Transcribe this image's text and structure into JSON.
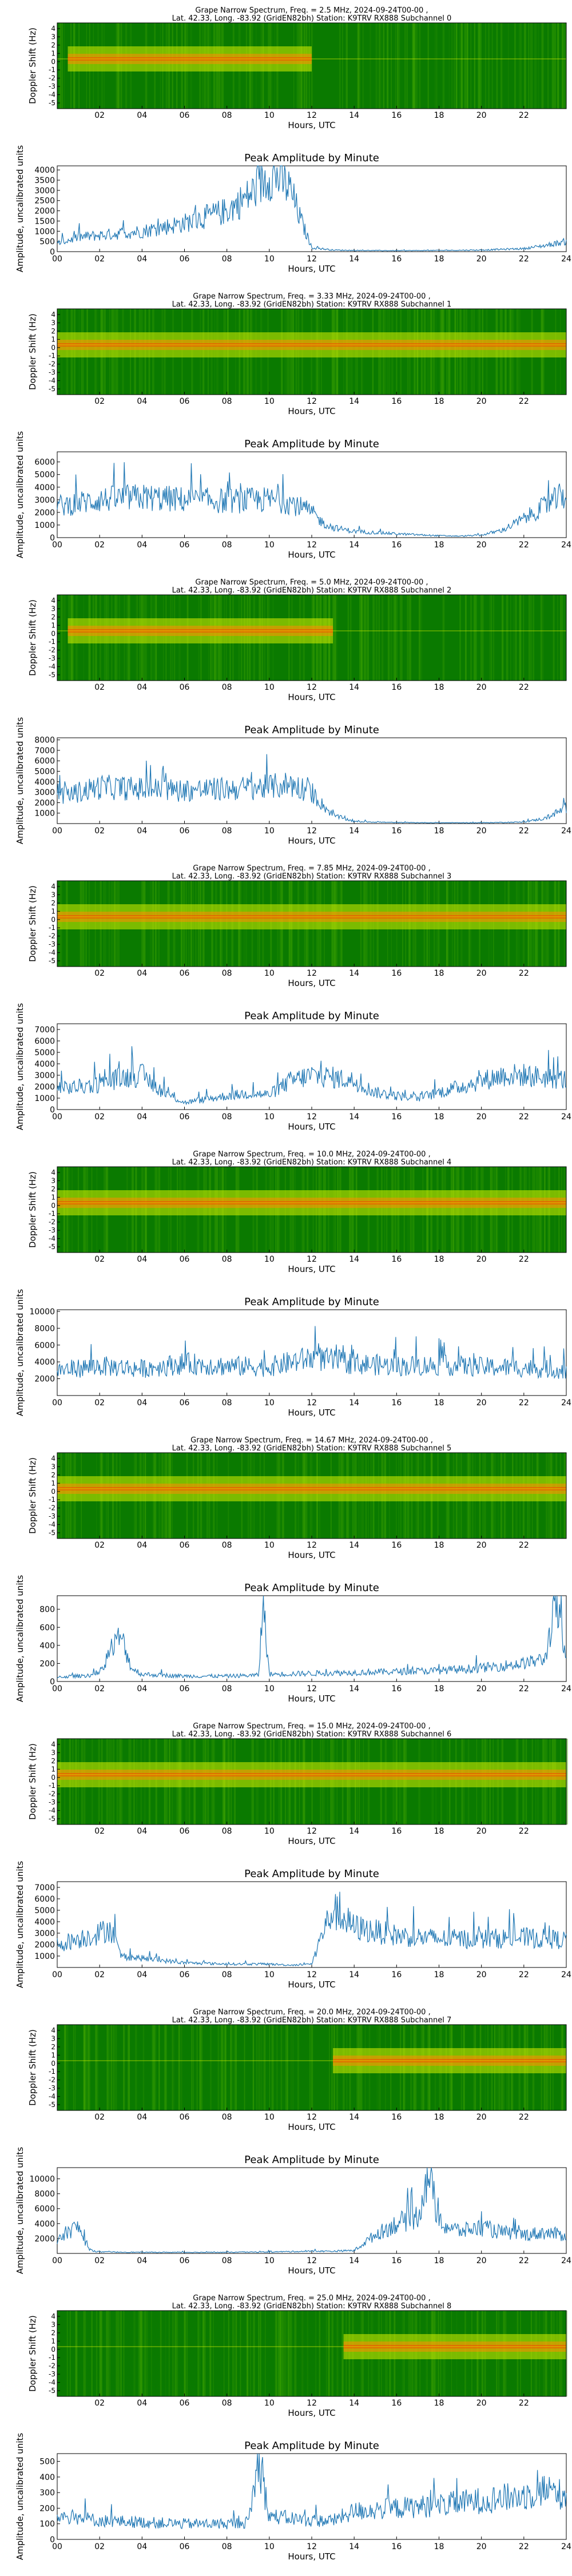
{
  "colors": {
    "line": "#1f77b4",
    "spec_dark": "#0a7a00",
    "spec_mid": "#3aa000",
    "spec_light": "#d8f000",
    "spec_hot": "#ff8a00",
    "spec_core": "#ff3300"
  },
  "spectrogram_axis": {
    "ylabel": "Doppler Shift (Hz)",
    "xlabel": "Hours, UTC",
    "yticks": [
      "4",
      "3",
      "2",
      "1",
      "0",
      "-1",
      "-2",
      "-3",
      "-4",
      "-5"
    ],
    "xticks": [
      "02",
      "04",
      "06",
      "08",
      "10",
      "12",
      "14",
      "16",
      "18",
      "20",
      "22"
    ]
  },
  "amplitude_axis": {
    "title": "Peak Amplitude by Minute",
    "ylabel": "Amplitude, uncalibrated units",
    "xlabel": "Hours, UTC",
    "xticks": [
      "00",
      "02",
      "04",
      "06",
      "08",
      "10",
      "12",
      "14",
      "16",
      "18",
      "20",
      "22",
      "24"
    ]
  },
  "chart_data": [
    {
      "type": "heatmap",
      "title_line1": "Grape Narrow Spectrum, Freq. = 2.5 MHz, 2024-09-24T00-00 ,",
      "title_line2": "Lat.  42.33, Long. -83.92 (GridEN82bh) Station: K9TRV RX888 Subchannel 0",
      "xlabel": "Hours, UTC",
      "ylabel": "Doppler Shift (Hz)",
      "xlim": [
        0,
        24
      ],
      "ylim": [
        -5,
        5
      ],
      "signal_hours": [
        0.5,
        12
      ]
    },
    {
      "type": "line",
      "title": "Peak Amplitude by Minute",
      "xlabel": "Hours, UTC",
      "ylabel": "Amplitude, uncalibrated units",
      "xlim": [
        0,
        24
      ],
      "ylim": [
        0,
        4200
      ],
      "yticks": [
        0,
        500,
        1000,
        1500,
        2000,
        2500,
        3000,
        3500,
        4000
      ],
      "x": [
        0,
        1,
        2,
        3,
        4,
        5,
        6,
        7,
        8,
        9,
        9.5,
        10,
        10.5,
        11,
        11.5,
        12,
        13,
        14,
        16,
        18,
        20,
        22,
        23,
        24
      ],
      "y": [
        400,
        700,
        800,
        900,
        1000,
        1200,
        1400,
        1700,
        2000,
        2700,
        3200,
        3800,
        3600,
        3000,
        1500,
        200,
        80,
        60,
        50,
        60,
        80,
        150,
        300,
        500
      ]
    },
    {
      "type": "heatmap",
      "title_line1": "Grape Narrow Spectrum, Freq. = 3.33 MHz, 2024-09-24T00-00 ,",
      "title_line2": "Lat.  42.33, Long. -83.92 (GridEN82bh) Station: K9TRV RX888 Subchannel 1",
      "xlabel": "Hours, UTC",
      "ylabel": "Doppler Shift (Hz)",
      "xlim": [
        0,
        24
      ],
      "ylim": [
        -5,
        5
      ],
      "signal_hours": [
        0,
        24
      ]
    },
    {
      "type": "line",
      "title": "Peak Amplitude by Minute",
      "xlabel": "Hours, UTC",
      "ylabel": "Amplitude, uncalibrated units",
      "xlim": [
        0,
        24
      ],
      "ylim": [
        0,
        6800
      ],
      "yticks": [
        0,
        1000,
        2000,
        3000,
        4000,
        5000,
        6000
      ],
      "x": [
        0,
        2,
        4,
        6,
        8,
        10,
        11,
        12,
        12.5,
        13,
        14,
        16,
        18,
        19,
        20,
        21,
        22,
        23,
        24
      ],
      "y": [
        2500,
        3000,
        3200,
        3000,
        2900,
        3000,
        2800,
        2000,
        1200,
        800,
        500,
        300,
        150,
        120,
        200,
        600,
        1500,
        2500,
        3500
      ]
    },
    {
      "type": "heatmap",
      "title_line1": "Grape Narrow Spectrum, Freq. = 5.0 MHz, 2024-09-24T00-00 ,",
      "title_line2": "Lat.  42.33, Long. -83.92 (GridEN82bh) Station: K9TRV RX888 Subchannel 2",
      "xlabel": "Hours, UTC",
      "ylabel": "Doppler Shift (Hz)",
      "xlim": [
        0,
        24
      ],
      "ylim": [
        -5,
        5
      ],
      "signal_hours": [
        0.5,
        13
      ]
    },
    {
      "type": "line",
      "title": "Peak Amplitude by Minute",
      "xlabel": "Hours, UTC",
      "ylabel": "Amplitude, uncalibrated units",
      "xlim": [
        0,
        24
      ],
      "ylim": [
        0,
        8200
      ],
      "yticks": [
        1000,
        2000,
        3000,
        4000,
        5000,
        6000,
        7000,
        8000
      ],
      "x": [
        0,
        2,
        4,
        6,
        8,
        10,
        11,
        12,
        12.5,
        13,
        14,
        16,
        18,
        20,
        22,
        23,
        24
      ],
      "y": [
        2500,
        3500,
        3300,
        3200,
        3300,
        3500,
        3800,
        3000,
        1800,
        800,
        200,
        100,
        80,
        80,
        150,
        500,
        1500
      ]
    },
    {
      "type": "heatmap",
      "title_line1": "Grape Narrow Spectrum, Freq. = 7.85 MHz, 2024-09-24T00-00 ,",
      "title_line2": "Lat.  42.33, Long. -83.92 (GridEN82bh) Station: K9TRV RX888 Subchannel 3",
      "xlabel": "Hours, UTC",
      "ylabel": "Doppler Shift (Hz)",
      "xlim": [
        0,
        24
      ],
      "ylim": [
        -5,
        5
      ],
      "signal_hours": [
        0,
        24
      ]
    },
    {
      "type": "line",
      "title": "Peak Amplitude by Minute",
      "xlabel": "Hours, UTC",
      "ylabel": "Amplitude, uncalibrated units",
      "xlim": [
        0,
        24
      ],
      "ylim": [
        0,
        7500
      ],
      "yticks": [
        0,
        1000,
        2000,
        3000,
        4000,
        5000,
        6000,
        7000
      ],
      "x": [
        0,
        1,
        2,
        3,
        4,
        5,
        6,
        7,
        8,
        9,
        10,
        11,
        12,
        13,
        14,
        15,
        16,
        17,
        18,
        19,
        20,
        21,
        22,
        23,
        24
      ],
      "y": [
        1800,
        2000,
        2200,
        2800,
        3000,
        1500,
        600,
        900,
        1200,
        1400,
        1300,
        2500,
        3000,
        2800,
        2500,
        1500,
        1200,
        1000,
        1500,
        2000,
        2500,
        3000,
        3000,
        2800,
        2600
      ]
    },
    {
      "type": "heatmap",
      "title_line1": "Grape Narrow Spectrum, Freq. = 10.0 MHz, 2024-09-24T00-00 ,",
      "title_line2": "Lat.  42.33, Long. -83.92 (GridEN82bh) Station: K9TRV RX888 Subchannel 4",
      "xlabel": "Hours, UTC",
      "ylabel": "Doppler Shift (Hz)",
      "xlim": [
        0,
        24
      ],
      "ylim": [
        -5,
        5
      ],
      "signal_hours": [
        0,
        24
      ]
    },
    {
      "type": "line",
      "title": "Peak Amplitude by Minute",
      "xlabel": "Hours, UTC",
      "ylabel": "Amplitude, uncalibrated units",
      "xlim": [
        0,
        24
      ],
      "ylim": [
        0,
        10200
      ],
      "yticks": [
        2000,
        4000,
        6000,
        8000,
        10000
      ],
      "x": [
        0,
        2,
        4,
        6,
        8,
        10,
        12,
        14,
        16,
        18,
        20,
        22,
        24
      ],
      "y": [
        3000,
        3500,
        3200,
        3800,
        3500,
        3400,
        4500,
        3800,
        3500,
        3600,
        3400,
        3300,
        3000
      ]
    },
    {
      "type": "heatmap",
      "title_line1": "Grape Narrow Spectrum, Freq. = 14.67 MHz, 2024-09-24T00-00 ,",
      "title_line2": "Lat.  42.33, Long. -83.92 (GridEN82bh) Station: K9TRV RX888 Subchannel 5",
      "xlabel": "Hours, UTC",
      "ylabel": "Doppler Shift (Hz)",
      "xlim": [
        0,
        24
      ],
      "ylim": [
        -5,
        5
      ],
      "signal_hours": [
        0,
        24
      ]
    },
    {
      "type": "line",
      "title": "Peak Amplitude by Minute",
      "xlabel": "Hours, UTC",
      "ylabel": "Amplitude, uncalibrated units",
      "xlim": [
        0,
        24
      ],
      "ylim": [
        0,
        950
      ],
      "yticks": [
        0,
        200,
        400,
        600,
        800
      ],
      "x": [
        0,
        1,
        2,
        2.5,
        3,
        3.5,
        4,
        6,
        8,
        9.5,
        9.7,
        10,
        12,
        14,
        16,
        18,
        20,
        22,
        23,
        23.5,
        24
      ],
      "y": [
        50,
        60,
        80,
        350,
        500,
        150,
        80,
        60,
        60,
        70,
        900,
        80,
        90,
        100,
        110,
        120,
        150,
        200,
        250,
        900,
        200
      ]
    },
    {
      "type": "heatmap",
      "title_line1": "Grape Narrow Spectrum, Freq. = 15.0 MHz, 2024-09-24T00-00 ,",
      "title_line2": "Lat.  42.33, Long. -83.92 (GridEN82bh) Station: K9TRV RX888 Subchannel 6",
      "xlabel": "Hours, UTC",
      "ylabel": "Doppler Shift (Hz)",
      "xlim": [
        0,
        24
      ],
      "ylim": [
        -5,
        5
      ],
      "signal_hours": [
        0,
        24
      ]
    },
    {
      "type": "line",
      "title": "Peak Amplitude by Minute",
      "xlabel": "Hours, UTC",
      "ylabel": "Amplitude, uncalibrated units",
      "xlim": [
        0,
        24
      ],
      "ylim": [
        0,
        7500
      ],
      "yticks": [
        1000,
        2000,
        3000,
        4000,
        5000,
        6000,
        7000
      ],
      "x": [
        0,
        1,
        2,
        2.5,
        3,
        4,
        6,
        8,
        10,
        11,
        12,
        12.5,
        13,
        14,
        16,
        18,
        20,
        22,
        24
      ],
      "y": [
        2000,
        2500,
        3000,
        3500,
        1000,
        800,
        400,
        300,
        300,
        200,
        300,
        3000,
        5000,
        3500,
        2800,
        2500,
        2500,
        2600,
        2400
      ]
    },
    {
      "type": "heatmap",
      "title_line1": "Grape Narrow Spectrum, Freq. = 20.0 MHz, 2024-09-24T00-00 ,",
      "title_line2": "Lat.  42.33, Long. -83.92 (GridEN82bh) Station: K9TRV RX888 Subchannel 7",
      "xlabel": "Hours, UTC",
      "ylabel": "Doppler Shift (Hz)",
      "xlim": [
        0,
        24
      ],
      "ylim": [
        -5,
        5
      ],
      "signal_hours": [
        13,
        24
      ]
    },
    {
      "type": "line",
      "title": "Peak Amplitude by Minute",
      "xlabel": "Hours, UTC",
      "ylabel": "Amplitude, uncalibrated units",
      "xlim": [
        0,
        24
      ],
      "ylim": [
        0,
        11500
      ],
      "yticks": [
        2000,
        4000,
        6000,
        8000,
        10000
      ],
      "x": [
        0,
        0.5,
        1,
        1.5,
        2,
        4,
        6,
        8,
        10,
        12,
        13,
        14,
        15,
        16,
        17,
        17.5,
        18,
        19,
        20,
        21,
        22,
        23,
        24
      ],
      "y": [
        1500,
        3000,
        3500,
        500,
        200,
        150,
        150,
        150,
        200,
        300,
        300,
        400,
        2500,
        4000,
        5000,
        11000,
        4000,
        3000,
        3500,
        2800,
        2500,
        2800,
        2400
      ]
    },
    {
      "type": "heatmap",
      "title_line1": "Grape Narrow Spectrum, Freq. = 25.0 MHz, 2024-09-24T00-00 ,",
      "title_line2": "Lat.  42.33, Long. -83.92 (GridEN82bh) Station: K9TRV RX888 Subchannel 8",
      "xlabel": "Hours, UTC",
      "ylabel": "Doppler Shift (Hz)",
      "xlim": [
        0,
        24
      ],
      "ylim": [
        -5,
        5
      ],
      "signal_hours": [
        13.5,
        24
      ]
    },
    {
      "type": "line",
      "title": "Peak Amplitude by Minute",
      "xlabel": "Hours, UTC",
      "ylabel": "Amplitude, uncalibrated units",
      "xlim": [
        0,
        24
      ],
      "ylim": [
        0,
        550
      ],
      "yticks": [
        0,
        100,
        200,
        300,
        400,
        500
      ],
      "x": [
        0,
        1,
        2,
        4,
        6,
        8,
        9,
        9.5,
        10,
        12,
        13,
        14,
        16,
        18,
        20,
        22,
        23,
        24
      ],
      "y": [
        150,
        140,
        120,
        110,
        100,
        100,
        110,
        500,
        150,
        120,
        120,
        180,
        200,
        220,
        250,
        280,
        320,
        280
      ]
    }
  ]
}
